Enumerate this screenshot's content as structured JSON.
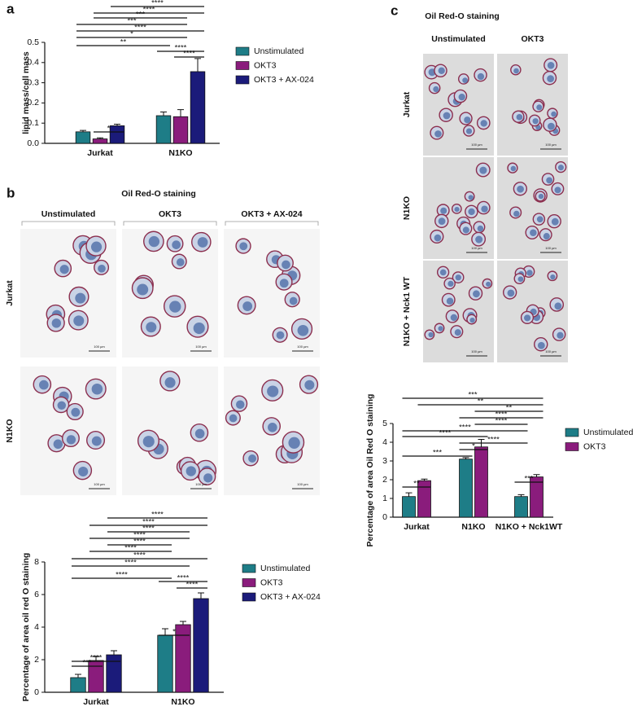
{
  "panel_labels": [
    "a",
    "b",
    "c"
  ],
  "micrographs": [
    {
      "title": "Oil Red-O staining",
      "columns": [
        "Unstimulated",
        "OKT3",
        "OKT3 + AX-024"
      ],
      "rows": [
        "Jurkat",
        "N1KO"
      ],
      "scale_bar": "100 µm"
    },
    {
      "title": "Oil Red-O staining",
      "columns": [
        "Unstimulated",
        "OKT3"
      ],
      "rows": [
        "Jurkat",
        "N1KO",
        "N1KO + Nck1 WT"
      ],
      "scale_bar": "100 µm"
    }
  ],
  "chart_data": [
    {
      "type": "bar",
      "ylabel": "lipid mass/cell mass",
      "categories": [
        "Jurkat",
        "N1KO"
      ],
      "series": [
        {
          "name": "Unstimulated",
          "color": "#1e7d87",
          "values": [
            0.057,
            0.137
          ],
          "errors": [
            0.007,
            0.018
          ]
        },
        {
          "name": "OKT3",
          "color": "#8a1c7c",
          "values": [
            0.022,
            0.132
          ],
          "errors": [
            0.005,
            0.035
          ]
        },
        {
          "name": "OKT3 + AX-024",
          "color": "#1b1b7a",
          "values": [
            0.087,
            0.355
          ],
          "errors": [
            0.008,
            0.065
          ]
        }
      ],
      "ylim": [
        0,
        0.5
      ],
      "yticks": [
        {
          "value": 0,
          "label": "0.0"
        },
        0.1,
        0.2,
        0.3,
        0.4,
        0.5
      ],
      "annotations": [
        "****",
        "****",
        "***",
        "***",
        "****",
        "*",
        "**",
        "****",
        "****",
        "*"
      ]
    },
    {
      "type": "bar",
      "ylabel": "Percentage of area oil red O staining",
      "categories": [
        "Jurkat",
        "N1KO"
      ],
      "series": [
        {
          "name": "Unstimulated",
          "color": "#1e7d87",
          "values": [
            0.9,
            3.5
          ],
          "errors": [
            0.2,
            0.4
          ]
        },
        {
          "name": "OKT3",
          "color": "#8a1c7c",
          "values": [
            1.95,
            4.15
          ],
          "errors": [
            0.25,
            0.2
          ]
        },
        {
          "name": "OKT3 + AX-024",
          "color": "#1b1b7a",
          "values": [
            2.3,
            5.75
          ],
          "errors": [
            0.25,
            0.35
          ]
        }
      ],
      "ylim": [
        0,
        8
      ],
      "yticks": [
        0,
        2,
        4,
        6,
        8
      ],
      "annotations": [
        "****",
        "****",
        "****",
        "****",
        "****",
        "****",
        "****",
        "****",
        "****",
        "****",
        "****",
        "*",
        "****",
        "***"
      ]
    },
    {
      "type": "bar",
      "ylabel": "Percentage of area Oil Red O  staining",
      "categories": [
        "Jurkat",
        "N1KO",
        "N1KO + Nck1WT"
      ],
      "series": [
        {
          "name": "Unstimulated",
          "color": "#1e7d87",
          "values": [
            1.1,
            3.1,
            1.1
          ],
          "errors": [
            0.2,
            0.08,
            0.1
          ]
        },
        {
          "name": "OKT3",
          "color": "#8a1c7c",
          "values": [
            1.95,
            3.75,
            2.15
          ],
          "errors": [
            0.08,
            0.4,
            0.12
          ]
        }
      ],
      "ylim": [
        0,
        5
      ],
      "yticks": [
        0,
        1,
        2,
        3,
        4,
        5
      ],
      "annotations": [
        "***",
        "**",
        "**",
        "****",
        "****",
        "****",
        "****",
        "****",
        "*",
        "***",
        "**",
        "***"
      ]
    }
  ]
}
